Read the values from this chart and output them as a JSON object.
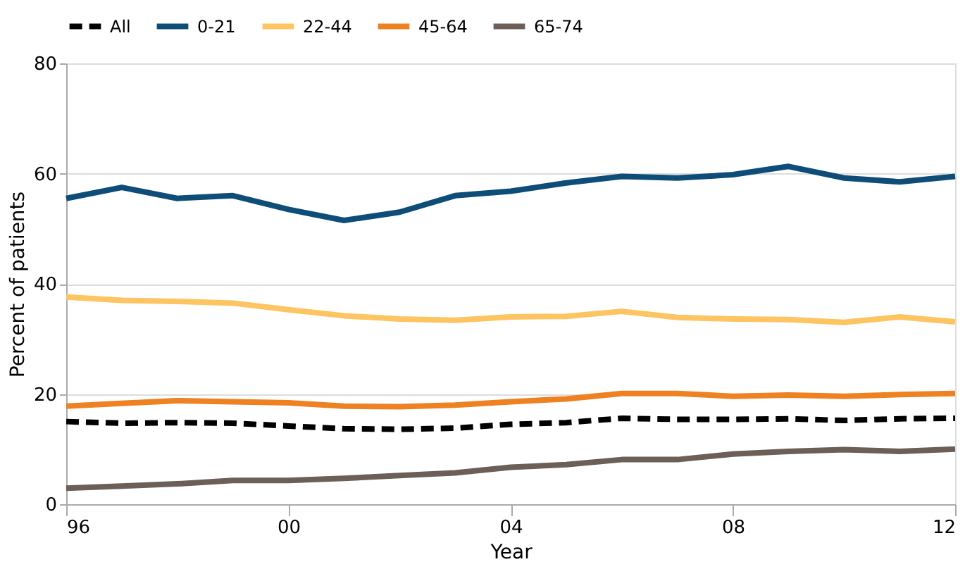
{
  "chart_data": {
    "type": "line",
    "xlabel": "Year",
    "ylabel": "Percent of patients",
    "x": [
      1996,
      1997,
      1998,
      1999,
      2000,
      2001,
      2002,
      2003,
      2004,
      2005,
      2006,
      2007,
      2008,
      2009,
      2010,
      2011,
      2012
    ],
    "xlim": [
      1996,
      2012
    ],
    "xticks": [
      {
        "value": 1996,
        "label": "96"
      },
      {
        "value": 2000,
        "label": "00"
      },
      {
        "value": 2004,
        "label": "04"
      },
      {
        "value": 2008,
        "label": "08"
      },
      {
        "value": 2012,
        "label": "12"
      }
    ],
    "ylim": [
      0,
      80
    ],
    "yticks": [
      0,
      20,
      40,
      60,
      80
    ],
    "grid": "y",
    "legend": "top",
    "marker": "none",
    "series": [
      {
        "name": "All",
        "color": "#000000",
        "line_style": "dashed",
        "values": [
          15,
          14.7,
          14.8,
          14.7,
          14.2,
          13.7,
          13.6,
          13.8,
          14.5,
          14.8,
          15.6,
          15.4,
          15.4,
          15.5,
          15.2,
          15.5,
          15.6
        ]
      },
      {
        "name": "0-21",
        "color": "#0e4d78",
        "line_style": "solid",
        "values": [
          55.5,
          57.5,
          55.5,
          56,
          53.5,
          51.5,
          53,
          56,
          56.8,
          58.3,
          59.5,
          59.2,
          59.8,
          61.3,
          59.2,
          58.5,
          59.5
        ]
      },
      {
        "name": "22-44",
        "color": "#fdc462",
        "line_style": "solid",
        "values": [
          37.6,
          37,
          36.8,
          36.5,
          35.3,
          34.2,
          33.6,
          33.4,
          34,
          34.1,
          35,
          33.9,
          33.6,
          33.5,
          33,
          34,
          33.1
        ]
      },
      {
        "name": "45-64",
        "color": "#ee8122",
        "line_style": "solid",
        "values": [
          17.8,
          18.3,
          18.8,
          18.6,
          18.4,
          17.8,
          17.7,
          18,
          18.6,
          19.1,
          20.1,
          20.1,
          19.6,
          19.8,
          19.6,
          19.9,
          20.1
        ]
      },
      {
        "name": "65-74",
        "color": "#6b5f57",
        "line_style": "solid",
        "values": [
          2.9,
          3.3,
          3.7,
          4.3,
          4.3,
          4.7,
          5.2,
          5.7,
          6.7,
          7.2,
          8.1,
          8.1,
          9.1,
          9.6,
          9.9,
          9.6,
          10
        ]
      }
    ]
  }
}
